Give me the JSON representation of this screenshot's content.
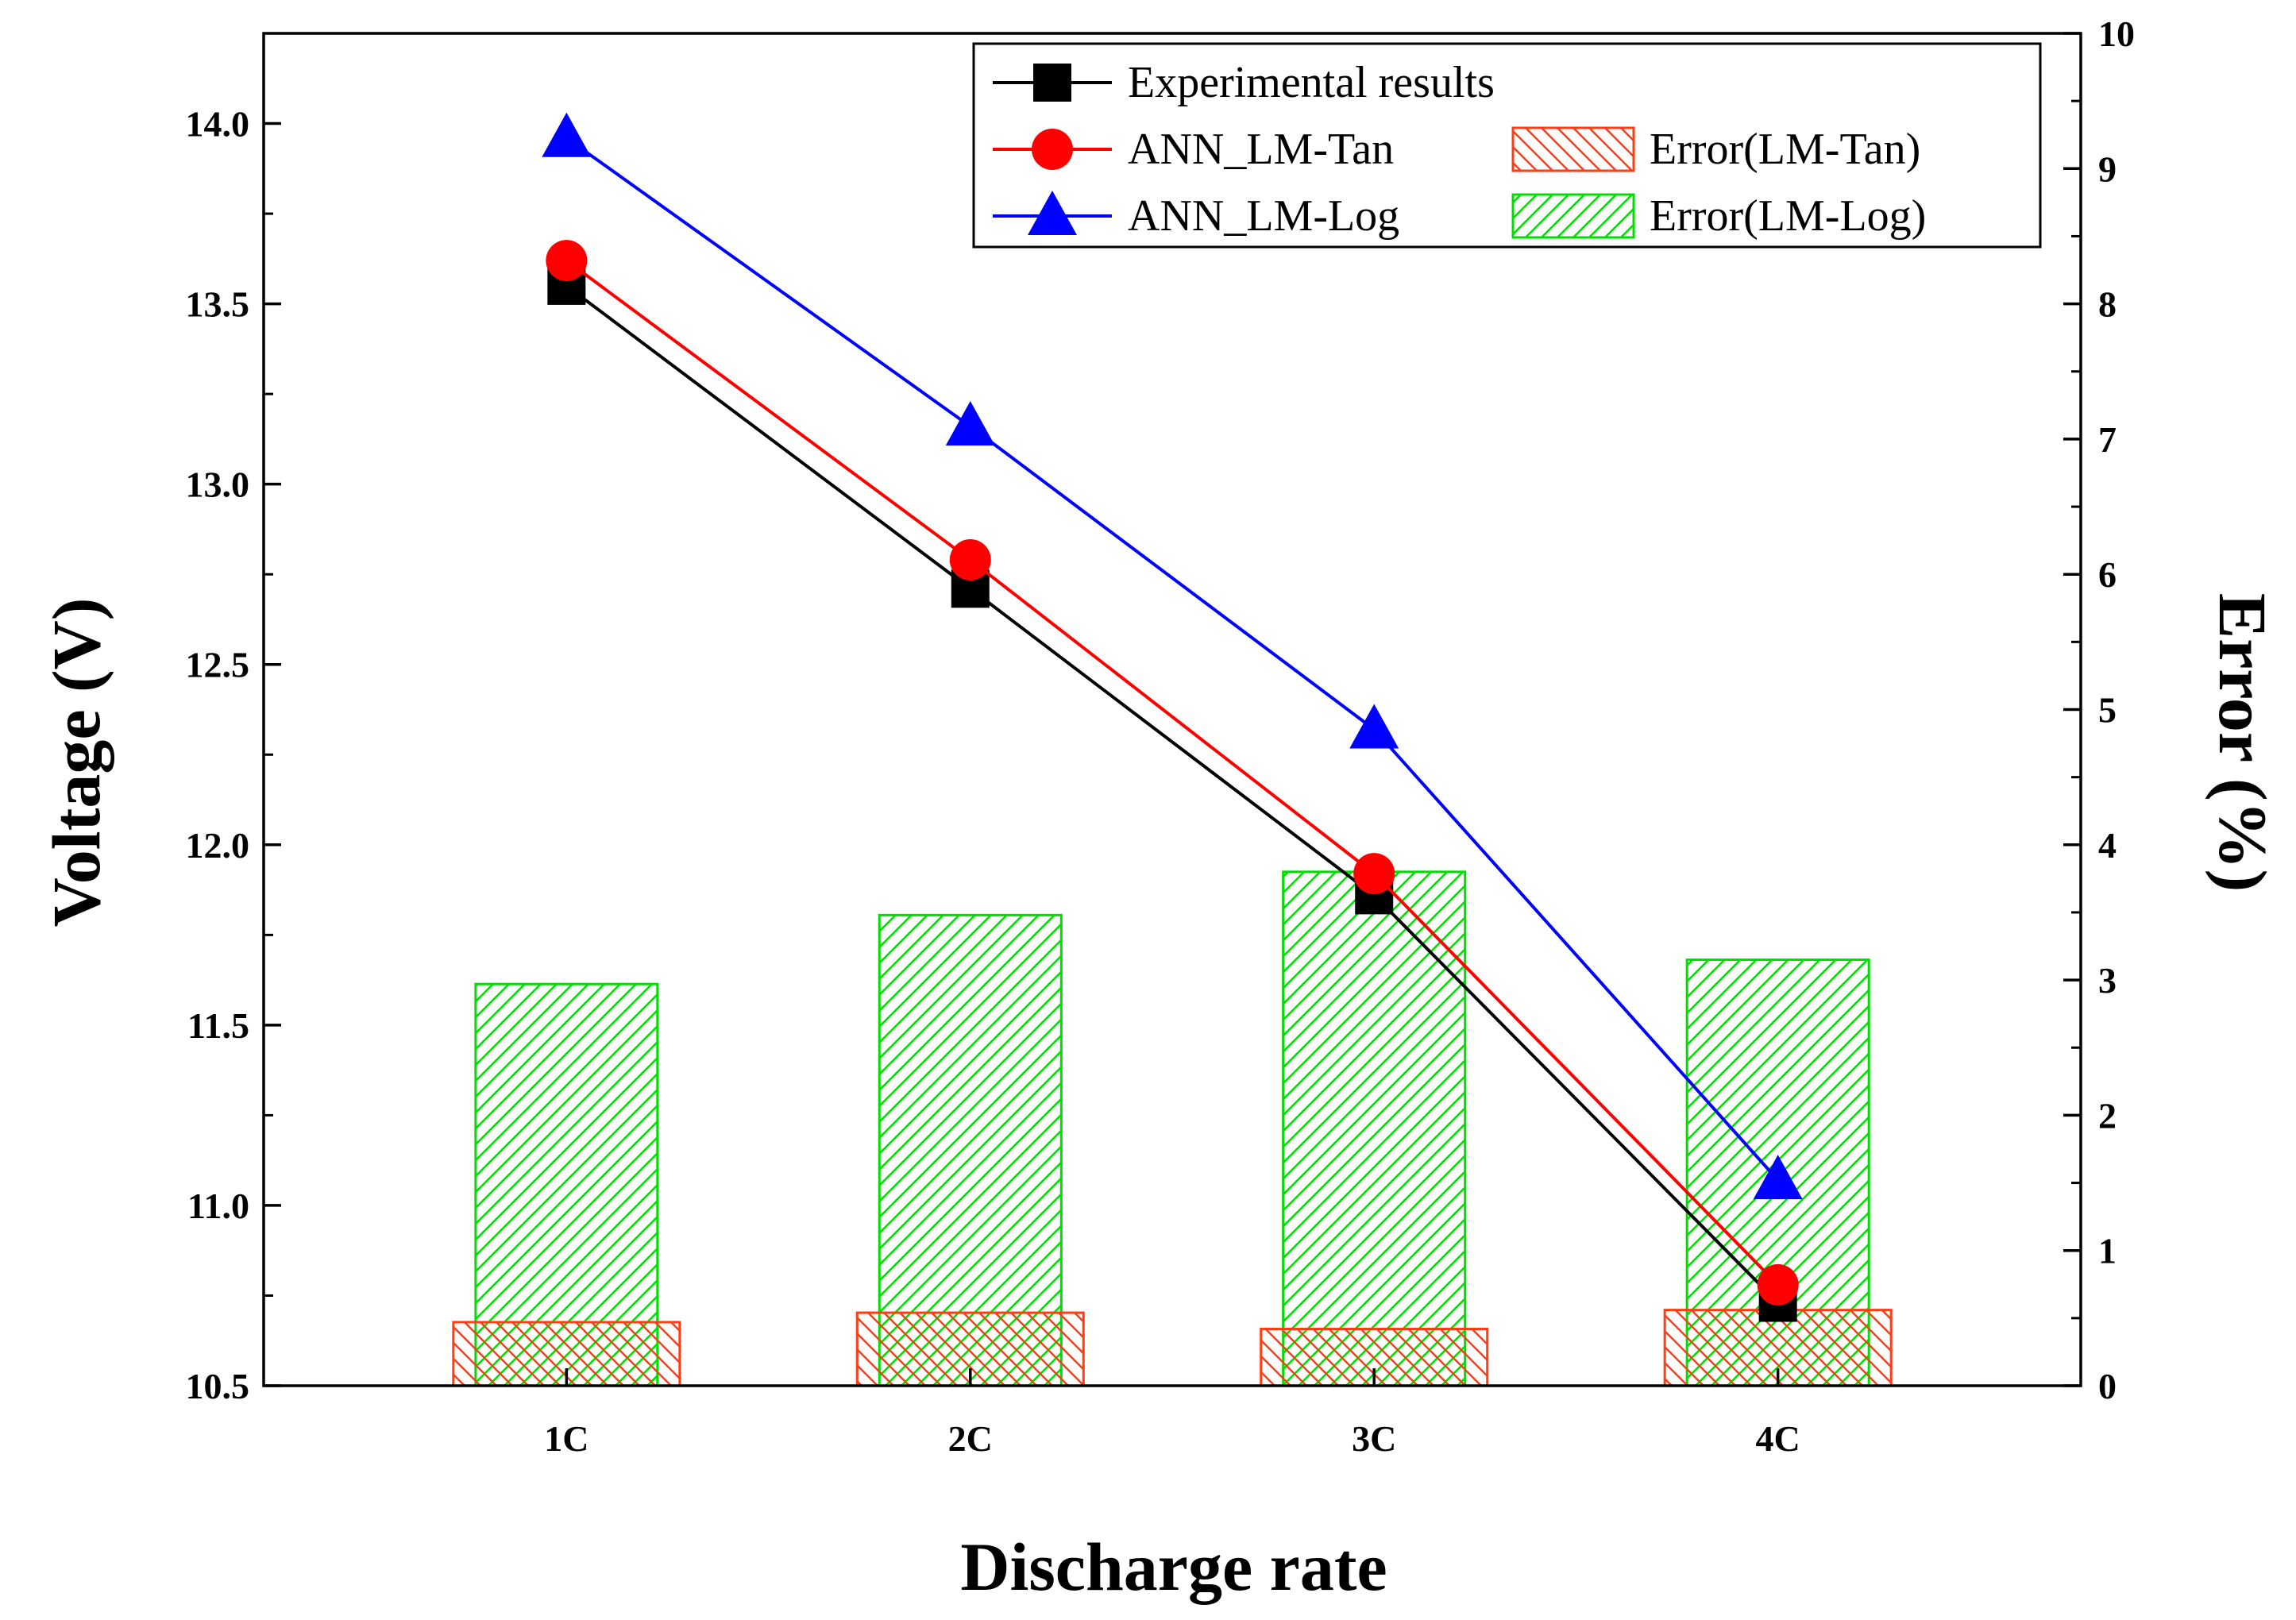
{
  "chart_data": {
    "type": "bar+line",
    "title": "",
    "xlabel": "Discharge rate",
    "ylabel": "Voltage (V)",
    "y2label": "Error (%)",
    "categories": [
      "1C",
      "2C",
      "3C",
      "4C"
    ],
    "ylim": [
      10.5,
      14.25
    ],
    "y_ticks": [
      "10.5",
      "11.0",
      "11.5",
      "12.0",
      "12.5",
      "13.0",
      "13.5",
      "14.0"
    ],
    "y2lim": [
      0,
      10
    ],
    "y2_ticks": [
      "0",
      "1",
      "2",
      "3",
      "4",
      "5",
      "6",
      "7",
      "8",
      "9",
      "10"
    ],
    "line_series": [
      {
        "name": "Experimental results",
        "color": "#000000",
        "marker": "square",
        "values": [
          13.55,
          12.71,
          11.86,
          10.73
        ]
      },
      {
        "name": "ANN_LM-Tan",
        "color": "#ff0000",
        "marker": "circle",
        "values": [
          13.62,
          12.79,
          11.92,
          10.78
        ]
      },
      {
        "name": "ANN_LM-Log",
        "color": "#0000ff",
        "marker": "triangle",
        "values": [
          13.96,
          13.16,
          12.32,
          11.07
        ]
      }
    ],
    "bar_series": [
      {
        "name": "Error(LM-Tan)",
        "color": "#ff3c14",
        "hatch": "backslash",
        "values": [
          0.47,
          0.54,
          0.42,
          0.56
        ]
      },
      {
        "name": "Error(LM-Log)",
        "color": "#00dd00",
        "hatch": "slash",
        "values": [
          2.97,
          3.48,
          3.8,
          3.15
        ]
      }
    ],
    "legend_position": "top-right"
  }
}
